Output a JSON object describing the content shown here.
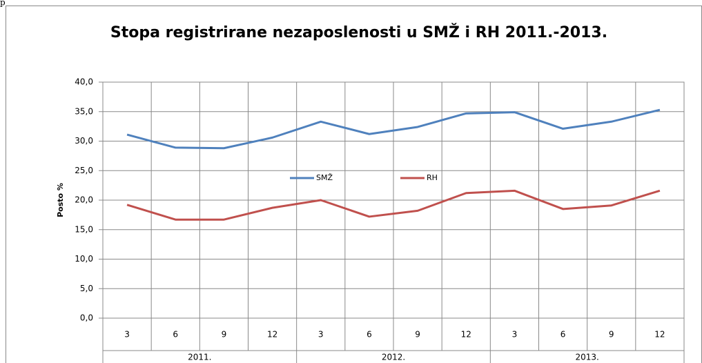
{
  "caption": "p",
  "chart_data": {
    "type": "line",
    "title": "Stopa registrirane nezaposlenosti u SMŽ i RH 2011.-2013.",
    "y_label": "Posto %",
    "categories": [
      "3",
      "6",
      "9",
      "12",
      "3",
      "6",
      "9",
      "12",
      "3",
      "6",
      "9",
      "12"
    ],
    "category_groups": [
      "2011.",
      "2012.",
      "2013."
    ],
    "series": [
      {
        "name": "SMŽ",
        "color": "#4f81bd",
        "values": [
          31.1,
          28.9,
          28.8,
          30.6,
          33.3,
          31.2,
          32.4,
          34.7,
          34.9,
          32.1,
          33.3,
          35.3
        ]
      },
      {
        "name": "RH",
        "color": "#c0504d",
        "values": [
          19.2,
          16.7,
          16.7,
          18.7,
          20.0,
          17.2,
          18.2,
          21.2,
          21.6,
          18.5,
          19.1,
          21.6
        ]
      }
    ],
    "ylim": [
      0,
      40
    ],
    "yticks": [
      {
        "value": 0,
        "label": "0,0"
      },
      {
        "value": 5,
        "label": "5,0"
      },
      {
        "value": 10,
        "label": "10,0"
      },
      {
        "value": 15,
        "label": "15,0"
      },
      {
        "value": 20,
        "label": "20,0"
      },
      {
        "value": 25,
        "label": "25,0"
      },
      {
        "value": 30,
        "label": "30,0"
      },
      {
        "value": 35,
        "label": "35,0"
      },
      {
        "value": 40,
        "label": "40,0"
      }
    ],
    "grid": true,
    "legend": "center"
  }
}
